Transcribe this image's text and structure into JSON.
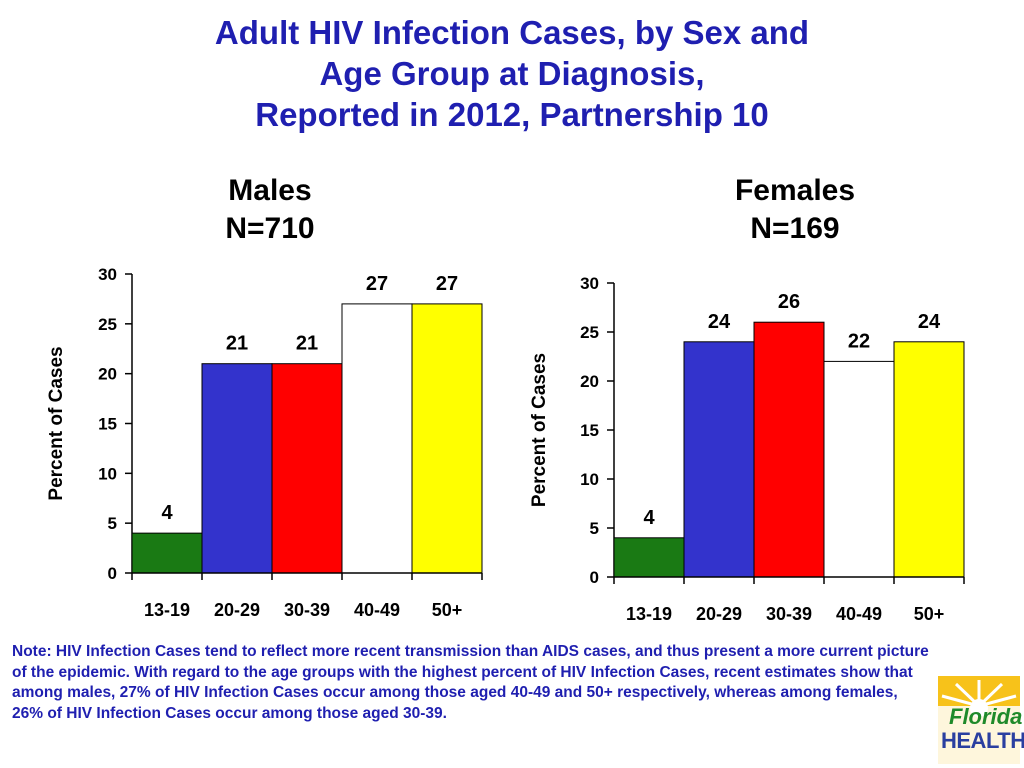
{
  "title_lines": [
    "Adult HIV Infection Cases, by Sex and",
    "Age Group at Diagnosis,",
    "Reported in 2012, Partnership 10"
  ],
  "chart_data": [
    {
      "type": "bar",
      "title": "Males",
      "subtitle": "N=710",
      "categories": [
        "13-19",
        "20-29",
        "30-39",
        "40-49",
        "50+"
      ],
      "values": [
        4,
        21,
        21,
        27,
        27
      ],
      "data_labels": [
        "4",
        "21",
        "21",
        "27",
        "27"
      ],
      "colors": [
        "#1a7a14",
        "#3333cc",
        "#ff0000",
        "#ffffff",
        "#ffff00"
      ],
      "ylabel": "Percent of Cases",
      "xlabel": "",
      "ylim": [
        0,
        30
      ],
      "yticks": [
        "0",
        "5",
        "10",
        "15",
        "20",
        "25",
        "30"
      ],
      "grid": false
    },
    {
      "type": "bar",
      "title": "Females",
      "subtitle": "N=169",
      "categories": [
        "13-19",
        "20-29",
        "30-39",
        "40-49",
        "50+"
      ],
      "values": [
        4,
        24,
        26,
        22,
        24
      ],
      "data_labels": [
        "4",
        "24",
        "26",
        "22",
        "24"
      ],
      "colors": [
        "#1a7a14",
        "#3333cc",
        "#ff0000",
        "#ffffff",
        "#ffff00"
      ],
      "ylabel": "Percent of Cases",
      "xlabel": "",
      "ylim": [
        0,
        30
      ],
      "yticks": [
        "0",
        "5",
        "10",
        "15",
        "20",
        "25",
        "30"
      ],
      "grid": false
    }
  ],
  "note": "Note: HIV Infection Cases tend to reflect more recent transmission than AIDS cases, and thus present a more current picture of the epidemic. With regard to the age groups with the highest percent of HIV Infection Cases, recent estimates show that among males, 27% of HIV Infection Cases occur among those aged 40-49 and 50+ respectively, whereas among females, 26% of HIV Infection Cases occur among those aged 30-39.",
  "logo": {
    "line1": "Florida",
    "line2": "HEALTH"
  }
}
